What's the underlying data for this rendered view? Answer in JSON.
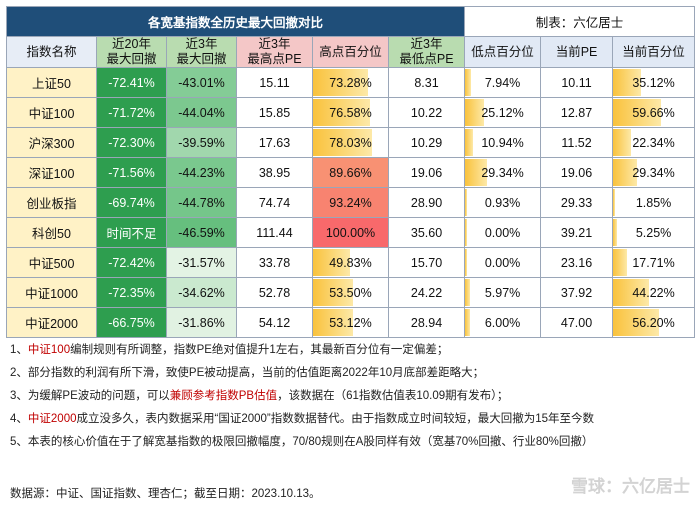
{
  "title": "各宽基指数全历史最大回撤对比",
  "author": "制表：六亿居士",
  "headers": [
    "指数名称",
    "近20年\n最大回撤",
    "近3年\n最大回撤",
    "近3年\n最高点PE",
    "高点百分位",
    "近3年\n最低点PE",
    "低点百分位",
    "当前PE",
    "当前百分位"
  ],
  "rows": [
    {
      "name": "上证50",
      "dd20": "-72.41%",
      "dd3": "-43.01%",
      "hipe": "15.11",
      "hipct": "73.28%",
      "lope": "8.31",
      "lopct": "7.94%",
      "curpe": "10.11",
      "curpct": "35.12%",
      "v_dd3": 43.01,
      "v_hipct": 73.28,
      "v_lopct": 7.94,
      "v_curpct": 35.12
    },
    {
      "name": "中证100",
      "dd20": "-71.72%",
      "dd3": "-44.04%",
      "hipe": "15.85",
      "hipct": "76.58%",
      "lope": "10.22",
      "lopct": "25.12%",
      "curpe": "12.87",
      "curpct": "59.66%",
      "v_dd3": 44.04,
      "v_hipct": 76.58,
      "v_lopct": 25.12,
      "v_curpct": 59.66
    },
    {
      "name": "沪深300",
      "dd20": "-72.30%",
      "dd3": "-39.59%",
      "hipe": "17.63",
      "hipct": "78.03%",
      "lope": "10.29",
      "lopct": "10.94%",
      "curpe": "11.52",
      "curpct": "22.34%",
      "v_dd3": 39.59,
      "v_hipct": 78.03,
      "v_lopct": 10.94,
      "v_curpct": 22.34
    },
    {
      "name": "深证100",
      "dd20": "-71.56%",
      "dd3": "-44.23%",
      "hipe": "38.95",
      "hipct": "89.66%",
      "lope": "19.06",
      "lopct": "29.34%",
      "curpe": "19.06",
      "curpct": "29.34%",
      "v_dd3": 44.23,
      "v_hipct": 89.66,
      "v_lopct": 29.34,
      "v_curpct": 29.34
    },
    {
      "name": "创业板指",
      "dd20": "-69.74%",
      "dd3": "-44.78%",
      "hipe": "74.74",
      "hipct": "93.24%",
      "lope": "28.90",
      "lopct": "0.93%",
      "curpe": "29.33",
      "curpct": "1.85%",
      "v_dd3": 44.78,
      "v_hipct": 93.24,
      "v_lopct": 0.93,
      "v_curpct": 1.85
    },
    {
      "name": "科创50",
      "dd20": "时间不足",
      "dd3": "-46.59%",
      "hipe": "111.44",
      "hipct": "100.00%",
      "lope": "35.60",
      "lopct": "0.00%",
      "curpe": "39.21",
      "curpct": "5.25%",
      "v_dd3": 46.59,
      "v_hipct": 100.0,
      "v_lopct": 0.0,
      "v_curpct": 5.25
    },
    {
      "name": "中证500",
      "dd20": "-72.42%",
      "dd3": "-31.57%",
      "hipe": "33.78",
      "hipct": "49.83%",
      "lope": "15.70",
      "lopct": "0.00%",
      "curpe": "23.16",
      "curpct": "17.71%",
      "v_dd3": 31.57,
      "v_hipct": 49.83,
      "v_lopct": 0.0,
      "v_curpct": 17.71
    },
    {
      "name": "中证1000",
      "dd20": "-72.35%",
      "dd3": "-34.62%",
      "hipe": "52.78",
      "hipct": "53.50%",
      "lope": "24.22",
      "lopct": "5.97%",
      "curpe": "37.92",
      "curpct": "44.22%",
      "v_dd3": 34.62,
      "v_hipct": 53.5,
      "v_lopct": 5.97,
      "v_curpct": 44.22
    },
    {
      "name": "中证2000",
      "dd20": "-66.75%",
      "dd3": "-31.86%",
      "hipe": "54.12",
      "hipct": "53.12%",
      "lope": "28.94",
      "lopct": "6.00%",
      "curpe": "47.00",
      "curpct": "56.20%",
      "v_dd3": 31.86,
      "v_hipct": 53.12,
      "v_lopct": 6.0,
      "v_curpct": 56.2
    }
  ],
  "notes": [
    {
      "pre": "1、",
      "red": "中证100",
      "post": "编制规则有所调整，指数PE绝对值提升1左右，其最新百分位有一定偏差；"
    },
    {
      "pre": "2、部分指数的利润有所下滑，致使PE被动提高，当前的估值距离2022年10月底部差距略大；",
      "red": "",
      "post": ""
    },
    {
      "pre": "3、为缓解PE波动的问题，可以",
      "red": "兼顾参考指数PB估值",
      "post": "，该数据在（61指数估值表10.09期有发布）；"
    },
    {
      "pre": "4、",
      "red": "中证2000",
      "post": "成立没多久，表内数据采用“国证2000”指数数据替代。由于指数成立时间较短，最大回撤为15年至今数"
    },
    {
      "pre": "5、本表的核心价值在于了解宽基指数的极限回撤幅度，70/80规则在A股同样有效（宽基70%回撤、行业80%回撤）",
      "red": "",
      "post": ""
    }
  ],
  "source": "数据源：中证、国证指数、理杏仁；截至日期：2023.10.13。",
  "watermark": "雪球：六亿居士",
  "colors": {
    "title_bg": "#1f4e79",
    "dd20_bg": "#2e9e4f",
    "name_bg": "#fff2c6",
    "note_red": "#c00000"
  }
}
